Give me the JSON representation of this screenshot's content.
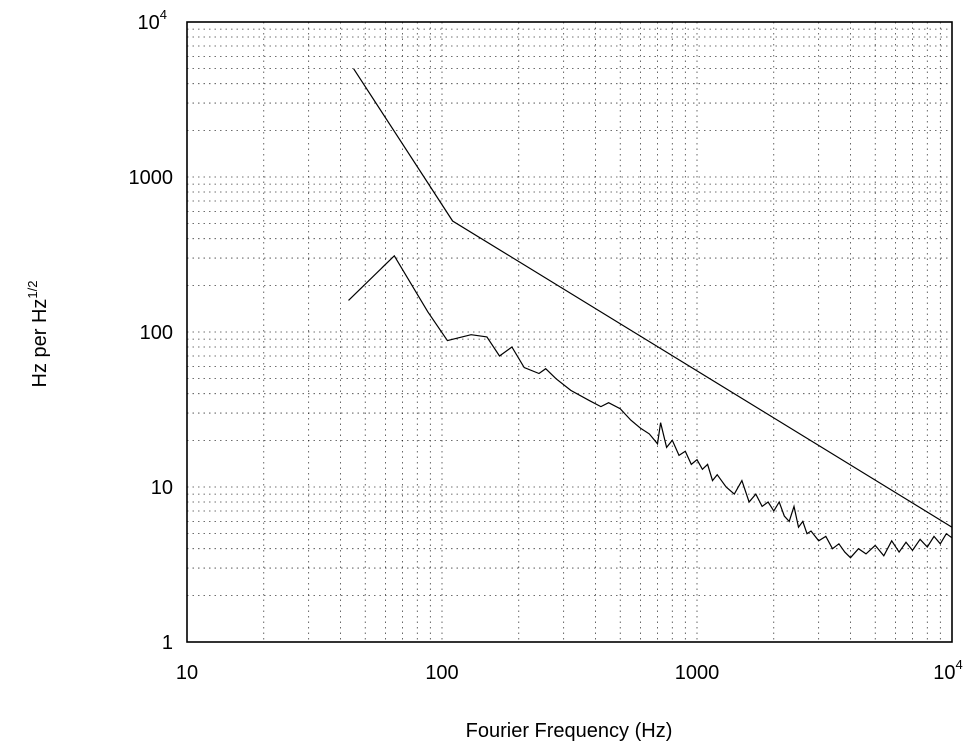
{
  "chart_data": {
    "type": "line",
    "title": "",
    "xlabel": "Fourier Frequency (Hz)",
    "ylabel_main": "Hz per Hz",
    "ylabel_sup": "1/2",
    "xscale": "log",
    "yscale": "log",
    "xlim": [
      10,
      10000
    ],
    "ylim": [
      1,
      10000
    ],
    "grid": true,
    "x_ticks": [
      {
        "value": 10,
        "base": "10",
        "sup": ""
      },
      {
        "value": 100,
        "base": "100",
        "sup": ""
      },
      {
        "value": 1000,
        "base": "1000",
        "sup": ""
      },
      {
        "value": 10000,
        "base": "10",
        "sup": "4"
      }
    ],
    "y_ticks": [
      {
        "value": 1,
        "base": "1",
        "sup": ""
      },
      {
        "value": 10,
        "base": "10",
        "sup": ""
      },
      {
        "value": 100,
        "base": "100",
        "sup": ""
      },
      {
        "value": 1000,
        "base": "1000",
        "sup": ""
      },
      {
        "value": 10000,
        "base": "10",
        "sup": "4"
      }
    ],
    "series": [
      {
        "x": [
          45,
          110,
          10000
        ],
        "y": [
          5000,
          520,
          5.5
        ]
      },
      {
        "x": [
          43,
          65,
          88,
          105,
          130,
          150,
          168,
          188,
          210,
          240,
          255,
          280,
          320,
          380,
          420,
          450,
          500,
          550,
          600,
          650,
          700,
          720,
          760,
          800,
          850,
          900,
          950,
          1000,
          1050,
          1100,
          1150,
          1200,
          1300,
          1400,
          1500,
          1600,
          1700,
          1800,
          1900,
          2000,
          2100,
          2200,
          2300,
          2400,
          2500,
          2600,
          2700,
          2800,
          3000,
          3200,
          3400,
          3600,
          3800,
          4000,
          4300,
          4600,
          5000,
          5400,
          5800,
          6200,
          6600,
          7000,
          7500,
          8000,
          8500,
          9000,
          9500,
          10000
        ],
        "y": [
          160,
          310,
          135,
          88,
          96,
          93,
          70,
          80,
          59,
          54,
          58,
          50,
          42,
          36,
          33,
          35,
          32,
          27,
          24,
          22,
          19,
          26,
          18,
          20,
          16,
          17,
          14,
          15,
          13,
          14,
          11,
          12,
          10,
          9,
          11,
          8,
          9,
          7.5,
          8,
          7,
          8,
          6.5,
          6,
          7.5,
          5.5,
          6,
          5,
          5.2,
          4.5,
          4.8,
          4,
          4.3,
          3.8,
          3.5,
          4,
          3.7,
          4.2,
          3.6,
          4.5,
          3.8,
          4.4,
          3.9,
          4.6,
          4.1,
          4.8,
          4.3,
          5,
          4.7
        ]
      }
    ]
  }
}
